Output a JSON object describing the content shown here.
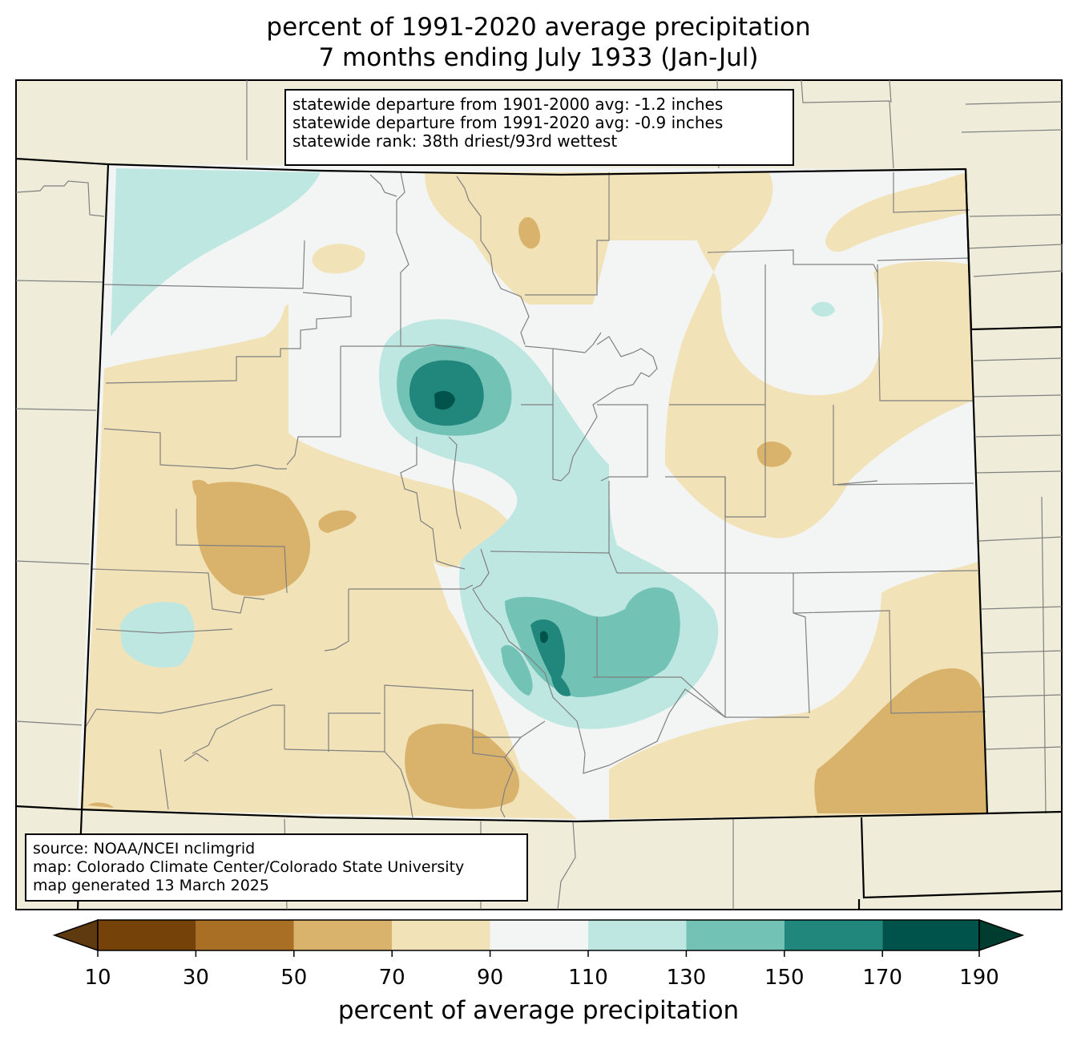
{
  "title": {
    "line1": "percent of 1991-2020 average precipitation",
    "line2": "7 months ending July 1933 (Jan-Jul)"
  },
  "stats": {
    "line1": "statewide departure from 1901-2000 avg: -1.2 inches",
    "line2": "statewide departure from 1991-2020 avg: -0.9 inches",
    "line3": "statewide rank: 38th driest/93rd wettest"
  },
  "source": {
    "line1": "source: NOAA/NCEI nclimgrid",
    "line2": "map: Colorado Climate Center/Colorado State University",
    "line3": "map generated 13 March 2025"
  },
  "colorbar": {
    "label": "percent of average precipitation",
    "ticks": [
      "10",
      "30",
      "50",
      "70",
      "90",
      "110",
      "130",
      "150",
      "170",
      "190"
    ],
    "colors": [
      "#5f3a10",
      "#754309",
      "#a96f24",
      "#d9b26c",
      "#f2e2b8",
      "#f3f5f4",
      "#bfe7e2",
      "#72c2b5",
      "#21867c",
      "#00534a",
      "#003c2f"
    ],
    "extend": "both"
  },
  "colors": {
    "background_land": "#efedda",
    "state_border": "#000000",
    "county_border": "#808080"
  }
}
